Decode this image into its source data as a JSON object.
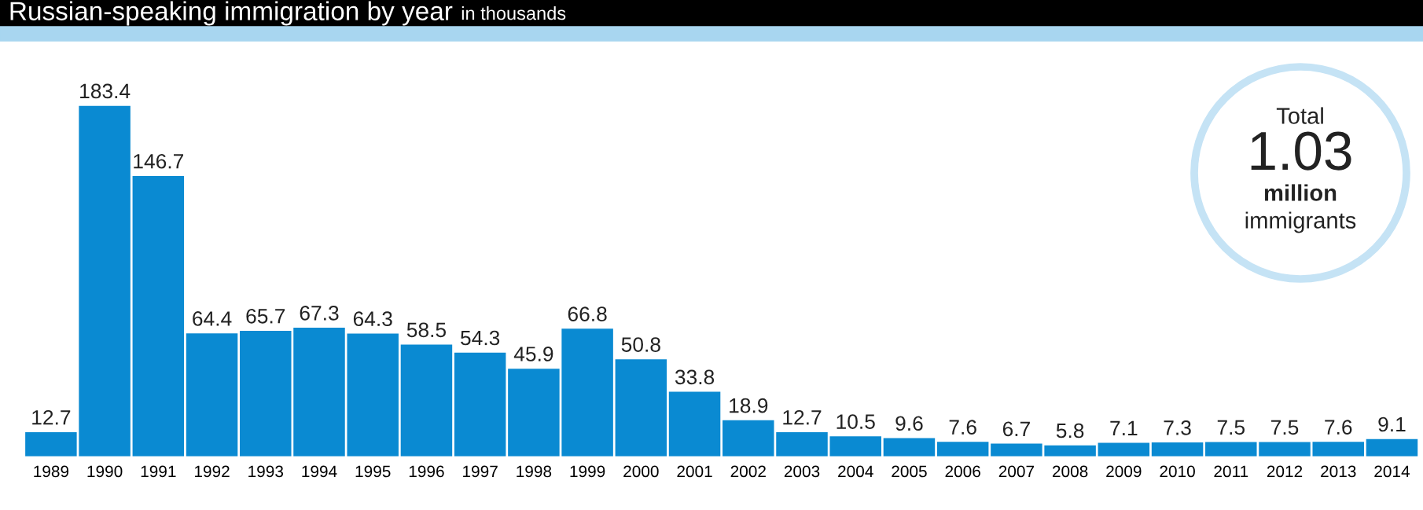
{
  "chart_data": {
    "type": "bar",
    "title": "Russian-speaking immigration by year",
    "subtitle": "in thousands",
    "categories": [
      "1989",
      "1990",
      "1991",
      "1992",
      "1993",
      "1994",
      "1995",
      "1996",
      "1997",
      "1998",
      "1999",
      "2000",
      "2001",
      "2002",
      "2003",
      "2004",
      "2005",
      "2006",
      "2007",
      "2008",
      "2009",
      "2010",
      "2011",
      "2012",
      "2013",
      "2014"
    ],
    "values": [
      12.7,
      183.4,
      146.7,
      64.4,
      65.7,
      67.3,
      64.3,
      58.5,
      54.3,
      45.9,
      66.8,
      50.8,
      33.8,
      18.9,
      12.7,
      10.5,
      9.6,
      7.6,
      6.7,
      5.8,
      7.1,
      7.3,
      7.5,
      7.5,
      7.6,
      9.1
    ],
    "color": "#0a8ad2",
    "data_labels": true,
    "annotations": [
      "Total",
      "1.03",
      "million",
      "immigrants"
    ],
    "grid": false,
    "legend": false,
    "tick_labels": "x"
  }
}
